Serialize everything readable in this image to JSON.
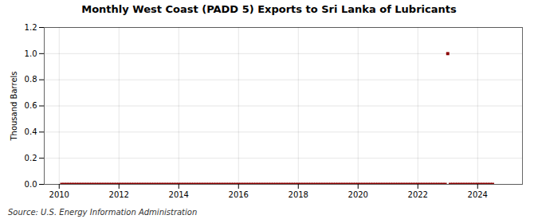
{
  "chart_data": {
    "type": "scatter",
    "title": "Monthly West Coast (PADD 5) Exports to Sri Lanka of Lubricants",
    "ylabel": "Thousand Barrels",
    "annotations": [
      "Source: U.S. Energy Information Administration"
    ],
    "color": "#8b0000",
    "marker": "square",
    "grid": true,
    "xlim": [
      2009.5,
      2025.5
    ],
    "xticks": [
      2010,
      2012,
      2014,
      2016,
      2018,
      2020,
      2022,
      2024
    ],
    "ylim": [
      0.0,
      1.2
    ],
    "yticks": [
      {
        "value": 0,
        "label": "0.0"
      },
      0.2,
      0.4,
      0.6,
      0.8,
      {
        "value": 1,
        "label": "1.0"
      },
      1.2
    ],
    "x": [
      2010.0833,
      2010.1667,
      2010.25,
      2010.3333,
      2010.4167,
      2010.5,
      2010.5833,
      2010.6667,
      2010.75,
      2010.8333,
      2010.9167,
      2011.0,
      2011.0833,
      2011.1667,
      2011.25,
      2011.3333,
      2011.4167,
      2011.5,
      2011.5833,
      2011.6667,
      2011.75,
      2011.8333,
      2011.9167,
      2012.0,
      2012.0833,
      2012.1667,
      2012.25,
      2012.3333,
      2012.4167,
      2012.5,
      2012.5833,
      2012.6667,
      2012.75,
      2012.8333,
      2012.9167,
      2013.0,
      2013.0833,
      2013.1667,
      2013.25,
      2013.3333,
      2013.4167,
      2013.5,
      2013.5833,
      2013.6667,
      2013.75,
      2013.8333,
      2013.9167,
      2014.0,
      2014.0833,
      2014.1667,
      2014.25,
      2014.3333,
      2014.4167,
      2014.5,
      2014.5833,
      2014.6667,
      2014.75,
      2014.8333,
      2014.9167,
      2015.0,
      2015.0833,
      2015.1667,
      2015.25,
      2015.3333,
      2015.4167,
      2015.5,
      2015.5833,
      2015.6667,
      2015.75,
      2015.8333,
      2015.9167,
      2016.0,
      2016.0833,
      2016.1667,
      2016.25,
      2016.3333,
      2016.4167,
      2016.5,
      2016.5833,
      2016.6667,
      2016.75,
      2016.8333,
      2016.9167,
      2017.0,
      2017.0833,
      2017.1667,
      2017.25,
      2017.3333,
      2017.4167,
      2017.5,
      2017.5833,
      2017.6667,
      2017.75,
      2017.8333,
      2017.9167,
      2018.0,
      2018.0833,
      2018.1667,
      2018.25,
      2018.3333,
      2018.4167,
      2018.5,
      2018.5833,
      2018.6667,
      2018.75,
      2018.8333,
      2018.9167,
      2019.0,
      2019.0833,
      2019.1667,
      2019.25,
      2019.3333,
      2019.4167,
      2019.5,
      2019.5833,
      2019.6667,
      2019.75,
      2019.8333,
      2019.9167,
      2020.0,
      2020.0833,
      2020.1667,
      2020.25,
      2020.3333,
      2020.4167,
      2020.5,
      2020.5833,
      2020.6667,
      2020.75,
      2020.8333,
      2020.9167,
      2021.0,
      2021.0833,
      2021.1667,
      2021.25,
      2021.3333,
      2021.4167,
      2021.5,
      2021.5833,
      2021.6667,
      2021.75,
      2021.8333,
      2021.9167,
      2022.0,
      2022.0833,
      2022.1667,
      2022.25,
      2022.3333,
      2022.4167,
      2022.5,
      2022.5833,
      2022.6667,
      2022.75,
      2022.8333,
      2022.9167,
      2023.0,
      2023.0833,
      2023.1667,
      2023.25,
      2023.3333,
      2023.4167,
      2023.5,
      2023.5833,
      2023.6667,
      2023.75,
      2023.8333,
      2023.9167,
      2024.0,
      2024.0833,
      2024.1667,
      2024.25,
      2024.3333,
      2024.4167,
      2024.5
    ],
    "values": [
      0,
      0,
      0,
      0,
      0,
      0,
      0,
      0,
      0,
      0,
      0,
      0,
      0,
      0,
      0,
      0,
      0,
      0,
      0,
      0,
      0,
      0,
      0,
      0,
      0,
      0,
      0,
      0,
      0,
      0,
      0,
      0,
      0,
      0,
      0,
      0,
      0,
      0,
      0,
      0,
      0,
      0,
      0,
      0,
      0,
      0,
      0,
      0,
      0,
      0,
      0,
      0,
      0,
      0,
      0,
      0,
      0,
      0,
      0,
      0,
      0,
      0,
      0,
      0,
      0,
      0,
      0,
      0,
      0,
      0,
      0,
      0,
      0,
      0,
      0,
      0,
      0,
      0,
      0,
      0,
      0,
      0,
      0,
      0,
      0,
      0,
      0,
      0,
      0,
      0,
      0,
      0,
      0,
      0,
      0,
      0,
      0,
      0,
      0,
      0,
      0,
      0,
      0,
      0,
      0,
      0,
      0,
      0,
      0,
      0,
      0,
      0,
      0,
      0,
      0,
      0,
      0,
      0,
      0,
      0,
      0,
      0,
      0,
      0,
      0,
      0,
      0,
      0,
      0,
      0,
      0,
      0,
      0,
      0,
      0,
      0,
      0,
      0,
      0,
      0,
      0,
      0,
      0,
      0,
      0,
      0,
      0,
      0,
      0,
      0,
      0,
      0,
      0,
      0,
      0,
      1,
      0,
      0,
      0,
      0,
      0,
      0,
      0,
      0,
      0,
      0,
      0,
      0,
      0,
      0,
      0,
      0,
      0,
      0
    ]
  }
}
